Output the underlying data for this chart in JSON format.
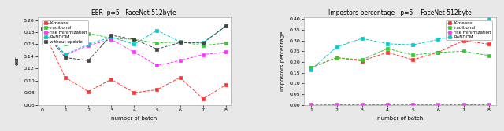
{
  "fig_bg": "#e8e8e8",
  "left": {
    "title": "EER  p=5 - FaceNet 512byte",
    "xlabel": "number of batch",
    "ylabel": "eer",
    "xlim": [
      -0.2,
      8.2
    ],
    "ylim": [
      0.06,
      0.205
    ],
    "yticks": [
      0.06,
      0.08,
      0.1,
      0.12,
      0.14,
      0.16,
      0.18,
      0.2
    ],
    "xticks": [
      0,
      1,
      2,
      3,
      4,
      5,
      6,
      7,
      8
    ],
    "series": [
      {
        "label": "K-means",
        "color": "#ff3333",
        "marker": "s",
        "linestyle": "--",
        "x": [
          0,
          1,
          2,
          3,
          4,
          5,
          6,
          7,
          8
        ],
        "y": [
          0.185,
          0.105,
          0.082,
          0.102,
          0.08,
          0.085,
          0.105,
          0.07,
          0.093
        ]
      },
      {
        "label": "traditional",
        "color": "#33cc33",
        "marker": "s",
        "linestyle": "--",
        "x": [
          0,
          1,
          2,
          3,
          4,
          5,
          6,
          7,
          8
        ],
        "y": [
          0.185,
          0.16,
          0.178,
          0.17,
          0.168,
          0.162,
          0.164,
          0.158,
          0.162
        ]
      },
      {
        "label": "risk minimization",
        "color": "#ff33ff",
        "marker": "s",
        "linestyle": "--",
        "x": [
          0,
          1,
          2,
          3,
          4,
          5,
          6,
          7,
          8
        ],
        "y": [
          0.185,
          0.142,
          0.158,
          0.168,
          0.147,
          0.125,
          0.133,
          0.143,
          0.147
        ]
      },
      {
        "label": "RANDOM",
        "color": "#00cccc",
        "marker": "s",
        "linestyle": "--",
        "x": [
          0,
          1,
          2,
          3,
          4,
          5,
          6,
          7,
          8
        ],
        "y": [
          0.185,
          0.143,
          0.16,
          0.172,
          0.16,
          0.183,
          0.164,
          0.163,
          0.19
        ]
      },
      {
        "label": "without update",
        "color": "#444444",
        "marker": "s",
        "linestyle": "--",
        "x": [
          0,
          1,
          2,
          3,
          4,
          5,
          6,
          7,
          8
        ],
        "y": [
          0.185,
          0.138,
          0.133,
          0.175,
          0.168,
          0.152,
          0.163,
          0.162,
          0.19
        ]
      }
    ]
  },
  "right": {
    "title": "Impostors percentage   p=5 -  FaceNet 512byte",
    "xlabel": "number of batch",
    "ylabel": "impostors percentage",
    "xlim": [
      0.7,
      8.3
    ],
    "ylim": [
      0,
      0.41
    ],
    "yticks": [
      0,
      0.05,
      0.1,
      0.15,
      0.2,
      0.25,
      0.3,
      0.35,
      0.4
    ],
    "xticks": [
      1,
      2,
      3,
      4,
      5,
      6,
      7,
      8
    ],
    "series": [
      {
        "label": "K-means",
        "color": "#ff3333",
        "marker": "s",
        "linestyle": "--",
        "x": [
          1,
          2,
          3,
          4,
          5,
          6,
          7,
          8
        ],
        "y": [
          0.175,
          0.22,
          0.205,
          0.245,
          0.21,
          0.245,
          0.3,
          0.283
        ]
      },
      {
        "label": "traditional",
        "color": "#33cc33",
        "marker": "s",
        "linestyle": "--",
        "x": [
          1,
          2,
          3,
          4,
          5,
          6,
          7,
          8
        ],
        "y": [
          0.175,
          0.22,
          0.21,
          0.263,
          0.232,
          0.245,
          0.25,
          0.23
        ]
      },
      {
        "label": "risk minimization",
        "color": "#ff33ff",
        "marker": "s",
        "linestyle": "--",
        "x": [
          1,
          2,
          3,
          4,
          5,
          6,
          7,
          8
        ],
        "y": [
          0.003,
          0.003,
          0.003,
          0.003,
          0.003,
          0.003,
          0.003,
          0.003
        ]
      },
      {
        "label": "RANDOM",
        "color": "#00cccc",
        "marker": "s",
        "linestyle": "--",
        "x": [
          1,
          2,
          3,
          4,
          5,
          6,
          7,
          8
        ],
        "y": [
          0.165,
          0.27,
          0.31,
          0.285,
          0.28,
          0.305,
          0.335,
          0.4
        ]
      }
    ]
  }
}
